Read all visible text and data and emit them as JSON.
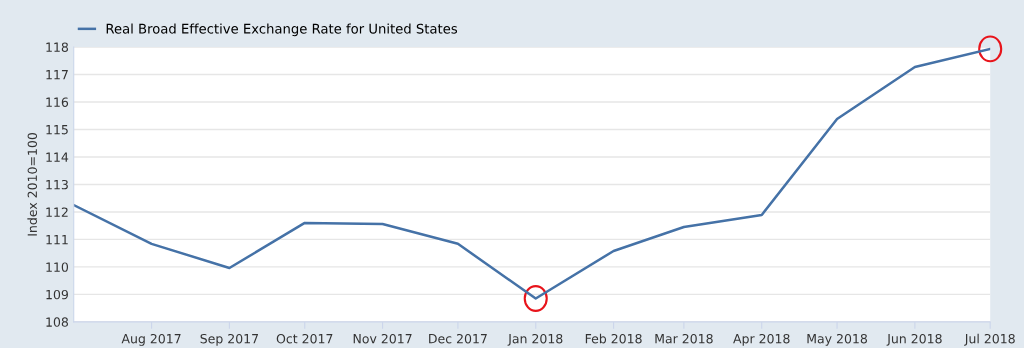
{
  "chart_data": {
    "type": "line",
    "ylabel": "Index 2010=100",
    "x": [
      "2017-07-01",
      "2017-08-01",
      "2017-09-01",
      "2017-10-01",
      "2017-11-01",
      "2017-12-01",
      "2018-01-01",
      "2018-02-01",
      "2018-03-01",
      "2018-04-01",
      "2018-05-01",
      "2018-06-01",
      "2018-07-01"
    ],
    "series": [
      {
        "name": "Real Broad Effective Exchange Rate for United States",
        "color": "#4572a7",
        "values": [
          112.25,
          110.84,
          109.96,
          111.6,
          111.56,
          110.84,
          108.85,
          110.58,
          111.45,
          111.89,
          115.38,
          117.27,
          117.93
        ]
      }
    ],
    "xlim": [
      "2017-07-01",
      "2018-07-01"
    ],
    "xticks": [
      {
        "value": "2017-08-01",
        "label": "Aug 2017"
      },
      {
        "value": "2017-09-01",
        "label": "Sep 2017"
      },
      {
        "value": "2017-10-01",
        "label": "Oct 2017"
      },
      {
        "value": "2017-11-01",
        "label": "Nov 2017"
      },
      {
        "value": "2017-12-01",
        "label": "Dec 2017"
      },
      {
        "value": "2018-01-01",
        "label": "Jan 2018"
      },
      {
        "value": "2018-02-01",
        "label": "Feb 2018"
      },
      {
        "value": "2018-03-01",
        "label": "Mar 2018"
      },
      {
        "value": "2018-04-01",
        "label": "Apr 2018"
      },
      {
        "value": "2018-05-01",
        "label": "May 2018"
      },
      {
        "value": "2018-06-01",
        "label": "Jun 2018"
      },
      {
        "value": "2018-07-01",
        "label": "Jul 2018"
      }
    ],
    "ylim": [
      108,
      118
    ],
    "yticks": [
      108,
      109,
      110,
      111,
      112,
      113,
      114,
      115,
      116,
      117,
      118
    ],
    "grid": "y",
    "legend": "top left",
    "marker": "none",
    "line_style": "solid"
  }
}
